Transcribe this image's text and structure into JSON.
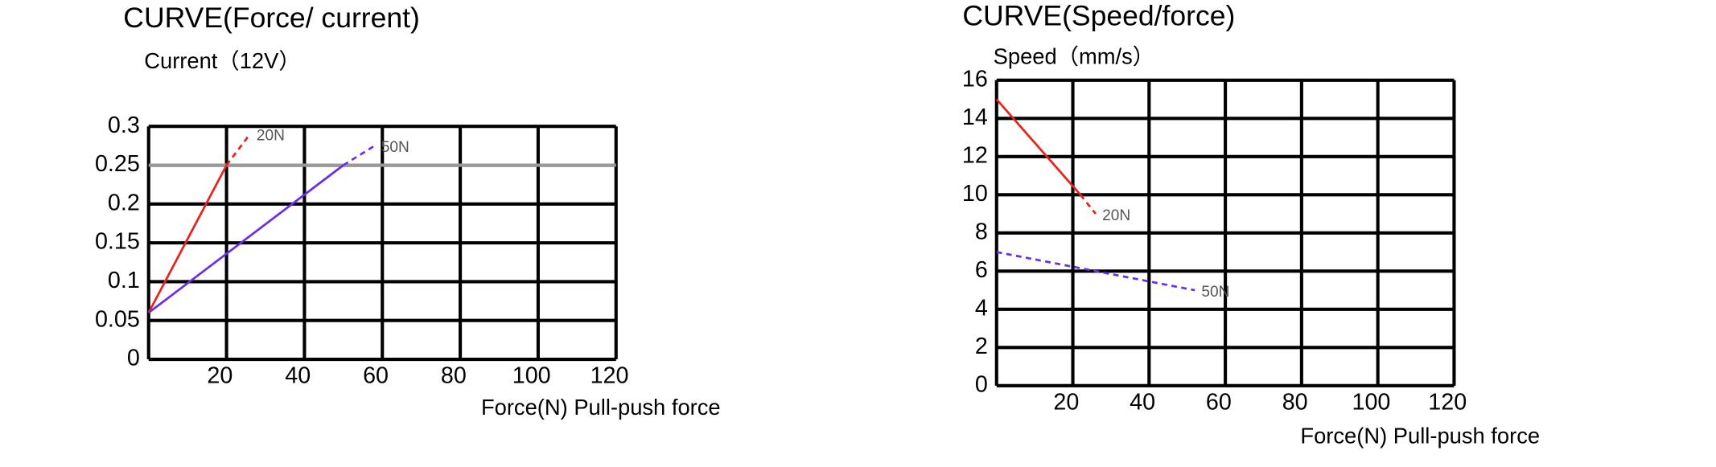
{
  "chart_data": [
    {
      "type": "line",
      "title": "CURVE(Force/ current)",
      "y_label": "Current（12V）",
      "x_label": "Force(N) Pull-push force",
      "xlim": [
        0,
        120
      ],
      "xticks": [
        20,
        40,
        60,
        80,
        100,
        120
      ],
      "ylim": [
        0,
        0.3
      ],
      "yticks": [
        0,
        0.05,
        0.1,
        0.15,
        0.2,
        0.25,
        0.3
      ],
      "grid": true,
      "hline": 0.25,
      "hline_color": "#999999",
      "series": [
        {
          "name": "20N",
          "color": "#e8231c",
          "x": [
            0,
            20,
            26
          ],
          "values": [
            0.06,
            0.25,
            0.29
          ]
        },
        {
          "name": "50N",
          "color": "#6a2ee8",
          "x": [
            0,
            50,
            58
          ],
          "values": [
            0.06,
            0.25,
            0.275
          ]
        }
      ]
    },
    {
      "type": "line",
      "title": "CURVE(Speed/force)",
      "y_label": "Speed（mm/s）",
      "x_label": "Force(N) Pull-push force",
      "xlim": [
        0,
        120
      ],
      "xticks": [
        20,
        40,
        60,
        80,
        100,
        120
      ],
      "ylim": [
        0,
        16
      ],
      "yticks": [
        0,
        2,
        4,
        6,
        8,
        10,
        12,
        14,
        16
      ],
      "grid": true,
      "series": [
        {
          "name": "20N",
          "color": "#e8231c",
          "x": [
            0,
            22,
            26
          ],
          "values": [
            15,
            10,
            9
          ]
        },
        {
          "name": "50N",
          "color": "#6a2ee8",
          "x": [
            0,
            52
          ],
          "values": [
            7,
            5
          ]
        }
      ]
    }
  ]
}
